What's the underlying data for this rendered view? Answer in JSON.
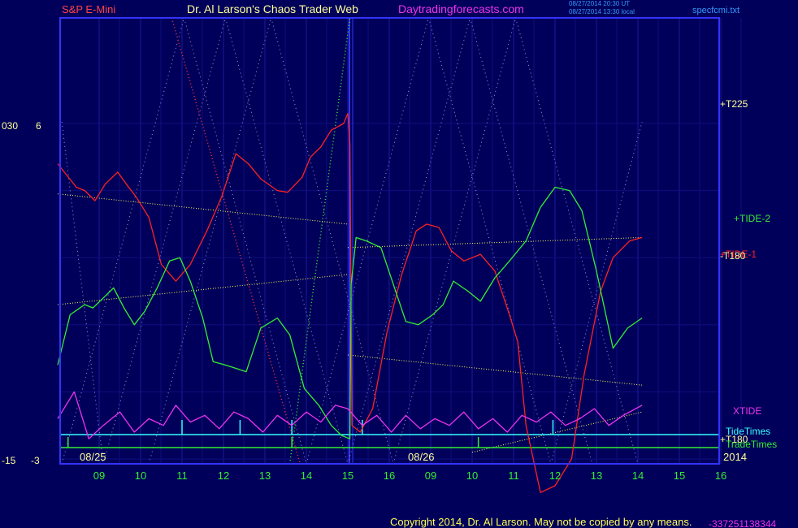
{
  "header": {
    "symbol": "S&P E-Mini",
    "site_title": "Dr. Al Larson's Chaos Trader Web",
    "website": "Daytradingforecasts.com",
    "timestamp_line1": "08/27/2014 20:30 UT",
    "timestamp_line2": "08/27/2014 13:30 local",
    "spec_file": "specfcmi.txt"
  },
  "left_scale": {
    "upper_a": "030",
    "upper_b": "6",
    "lower_a": "-15",
    "lower_b": "-3"
  },
  "right_labels": {
    "t225": "+T225",
    "tide2": "+TIDE-2",
    "tide1": "+TIDE-1",
    "t180_mid": "-T180",
    "xtide": "XTIDE",
    "tide_times": "TideTimes",
    "t180_low": "+T180",
    "trade_times": "TradeTimes",
    "year": "2014"
  },
  "date_labels": [
    "08/25",
    "08/26"
  ],
  "footer": {
    "copyright": "Copyright 2014, Dr. Al Larson. May not be copied by any means.",
    "overflow": "-337251138344"
  },
  "colors": {
    "background": "#00005a",
    "plot_border": "#3333ff",
    "tide1": "#ff2020",
    "tide2": "#33ee33",
    "xtide": "#ee33ee",
    "tide_times": "#33ffff",
    "trade_times": "#33ee33",
    "trend_lines": "#ffff55",
    "header_symbol": "#ff4444",
    "header_title": "#ffff99",
    "header_site": "#ee33ee",
    "header_small": "#3399ff",
    "axis_text": "#33ee33"
  },
  "chart_data": {
    "type": "line",
    "x_axis": {
      "ticks": [
        "09",
        "10",
        "11",
        "12",
        "13",
        "14",
        "15",
        "16",
        "09",
        "10",
        "11",
        "12",
        "13",
        "14",
        "15",
        "16"
      ],
      "day_labels": [
        "08/25",
        "08/26"
      ]
    },
    "y_axis_left": [
      "030",
      "6",
      "-15",
      "-3"
    ],
    "grid": true,
    "series": [
      {
        "name": "TIDE-1",
        "color": "#ff2020",
        "points": [
          [
            -1.0,
            5.8
          ],
          [
            -0.55,
            5.1
          ],
          [
            -0.35,
            5.0
          ],
          [
            -0.1,
            4.7
          ],
          [
            0.15,
            5.2
          ],
          [
            0.45,
            5.55
          ],
          [
            0.65,
            5.2
          ],
          [
            0.9,
            4.8
          ],
          [
            1.2,
            4.2
          ],
          [
            1.5,
            2.8
          ],
          [
            1.85,
            2.3
          ],
          [
            2.2,
            2.8
          ],
          [
            2.6,
            3.8
          ],
          [
            2.95,
            4.8
          ],
          [
            3.3,
            6.1
          ],
          [
            3.6,
            5.8
          ],
          [
            3.9,
            5.35
          ],
          [
            4.3,
            5.0
          ],
          [
            4.55,
            4.95
          ],
          [
            4.9,
            5.4
          ],
          [
            5.1,
            6.0
          ],
          [
            5.35,
            6.3
          ],
          [
            5.6,
            6.8
          ],
          [
            5.9,
            7.0
          ],
          [
            6.0,
            7.3
          ],
          [
            6.05,
            6.4
          ],
          [
            6.1,
            -2.0
          ],
          [
            6.3,
            -2.2
          ],
          [
            6.6,
            -1.5
          ],
          [
            6.95,
            0.8
          ],
          [
            7.3,
            2.5
          ],
          [
            7.65,
            3.8
          ],
          [
            7.9,
            4.0
          ],
          [
            8.2,
            3.9
          ],
          [
            8.5,
            3.2
          ],
          [
            8.8,
            2.9
          ],
          [
            9.2,
            3.1
          ],
          [
            9.55,
            2.6
          ],
          [
            9.9,
            1.3
          ],
          [
            10.1,
            0.5
          ],
          [
            10.3,
            -2.0
          ],
          [
            10.65,
            -4.0
          ],
          [
            11.0,
            -3.8
          ],
          [
            11.4,
            -3.0
          ],
          [
            11.7,
            -0.5
          ],
          [
            12.1,
            2.0
          ],
          [
            12.4,
            3.0
          ],
          [
            12.8,
            3.5
          ],
          [
            13.1,
            3.6
          ]
        ]
      },
      {
        "name": "TIDE-2",
        "color": "#33ee33",
        "points": [
          [
            -1.0,
            -0.2
          ],
          [
            -0.7,
            1.3
          ],
          [
            -0.35,
            1.6
          ],
          [
            -0.15,
            1.5
          ],
          [
            0.1,
            1.8
          ],
          [
            0.35,
            2.1
          ],
          [
            0.6,
            1.5
          ],
          [
            0.85,
            1.0
          ],
          [
            1.1,
            1.4
          ],
          [
            1.4,
            2.1
          ],
          [
            1.7,
            2.9
          ],
          [
            1.95,
            3.0
          ],
          [
            2.2,
            2.3
          ],
          [
            2.5,
            1.2
          ],
          [
            2.75,
            -0.1
          ],
          [
            3.05,
            -0.2
          ],
          [
            3.3,
            -0.3
          ],
          [
            3.55,
            -0.4
          ],
          [
            3.9,
            0.9
          ],
          [
            4.3,
            1.2
          ],
          [
            4.6,
            0.7
          ],
          [
            4.95,
            -0.9
          ],
          [
            5.3,
            -1.4
          ],
          [
            5.6,
            -2.0
          ],
          [
            5.85,
            -2.3
          ],
          [
            6.05,
            -2.4
          ],
          [
            6.08,
            2.2
          ],
          [
            6.2,
            3.6
          ],
          [
            6.45,
            3.5
          ],
          [
            6.8,
            3.3
          ],
          [
            7.1,
            2.2
          ],
          [
            7.4,
            1.1
          ],
          [
            7.7,
            1.0
          ],
          [
            8.05,
            1.3
          ],
          [
            8.3,
            1.6
          ],
          [
            8.55,
            2.3
          ],
          [
            8.9,
            2.0
          ],
          [
            9.2,
            1.7
          ],
          [
            9.55,
            2.4
          ],
          [
            9.9,
            2.9
          ],
          [
            10.3,
            3.5
          ],
          [
            10.65,
            4.5
          ],
          [
            11.0,
            5.1
          ],
          [
            11.35,
            5.0
          ],
          [
            11.65,
            4.4
          ],
          [
            12.0,
            2.6
          ],
          [
            12.4,
            0.3
          ],
          [
            12.75,
            0.9
          ],
          [
            13.1,
            1.2
          ]
        ]
      },
      {
        "name": "XTIDE",
        "color": "#ee33ee",
        "points": [
          [
            -1.0,
            -1.8
          ],
          [
            -0.6,
            -1.0
          ],
          [
            -0.25,
            -2.4
          ],
          [
            0.1,
            -2.0
          ],
          [
            0.5,
            -1.6
          ],
          [
            0.85,
            -2.2
          ],
          [
            1.2,
            -1.8
          ],
          [
            1.55,
            -2.0
          ],
          [
            1.85,
            -1.4
          ],
          [
            2.2,
            -1.9
          ],
          [
            2.55,
            -1.7
          ],
          [
            2.9,
            -2.1
          ],
          [
            3.25,
            -1.6
          ],
          [
            3.6,
            -1.8
          ],
          [
            3.95,
            -2.2
          ],
          [
            4.3,
            -1.7
          ],
          [
            4.65,
            -2.0
          ],
          [
            5.0,
            -1.6
          ],
          [
            5.35,
            -1.9
          ],
          [
            5.7,
            -1.4
          ],
          [
            6.0,
            -1.5
          ],
          [
            6.35,
            -2.0
          ],
          [
            6.7,
            -1.7
          ],
          [
            7.05,
            -2.2
          ],
          [
            7.4,
            -1.7
          ],
          [
            7.75,
            -2.1
          ],
          [
            8.1,
            -1.8
          ],
          [
            8.45,
            -2.0
          ],
          [
            8.8,
            -1.6
          ],
          [
            9.15,
            -2.1
          ],
          [
            9.5,
            -1.8
          ],
          [
            9.85,
            -2.2
          ],
          [
            10.2,
            -1.7
          ],
          [
            10.55,
            -1.9
          ],
          [
            10.9,
            -1.6
          ],
          [
            11.25,
            -2.0
          ],
          [
            11.6,
            -1.8
          ],
          [
            11.95,
            -1.5
          ],
          [
            12.3,
            -2.0
          ],
          [
            12.65,
            -1.7
          ],
          [
            13.1,
            -1.4
          ]
        ]
      }
    ],
    "trend_lines": [
      {
        "name": "T225",
        "from": [
          6.0,
          3.3
        ],
        "to": [
          13.1,
          3.6
        ]
      },
      {
        "name": "T180 (lower)",
        "from": [
          9.0,
          -2.8
        ],
        "to": [
          13.1,
          -1.6
        ]
      },
      {
        "name": "T180 (upper)",
        "from": [
          6.0,
          0.1
        ],
        "to": [
          13.1,
          -0.8
        ]
      }
    ],
    "tide_time_markers": [
      2.0,
      3.4,
      4.65,
      6.35,
      10.95
    ],
    "trade_time_markers": [
      -0.75,
      4.65,
      9.15
    ]
  }
}
